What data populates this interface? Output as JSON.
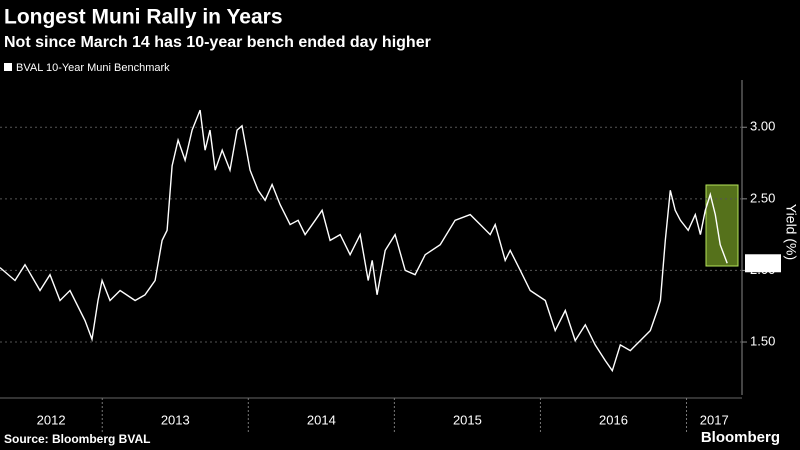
{
  "chart_data": {
    "type": "line",
    "title": "Longest Muni Rally in Years",
    "subtitle": "Not since March 14 has 10-year bench ended day higher",
    "y_axis_label": "Yield (%)",
    "source": "Source: Bloomberg BVAL",
    "logo": "Bloomberg",
    "x": [
      2012.3,
      2012.403,
      2012.471,
      2012.574,
      2012.642,
      2012.711,
      2012.779,
      2012.882,
      2012.93,
      2012.971,
      2012.999,
      2013.053,
      2013.122,
      2013.225,
      2013.293,
      2013.362,
      2013.41,
      2013.444,
      2013.478,
      2013.519,
      2013.567,
      2013.615,
      2013.67,
      2013.704,
      2013.738,
      2013.773,
      2013.821,
      2013.875,
      2013.923,
      2013.957,
      2014.012,
      2014.067,
      2014.115,
      2014.163,
      2014.218,
      2014.286,
      2014.341,
      2014.389,
      2014.458,
      2014.505,
      2014.56,
      2014.629,
      2014.697,
      2014.766,
      2014.821,
      2014.848,
      2014.882,
      2014.937,
      2015.005,
      2015.074,
      2015.142,
      2015.211,
      2015.314,
      2015.416,
      2015.519,
      2015.588,
      2015.656,
      2015.69,
      2015.759,
      2015.793,
      2015.862,
      2015.93,
      2016.033,
      2016.101,
      2016.17,
      2016.238,
      2016.307,
      2016.375,
      2016.444,
      2016.492,
      2016.547,
      2016.615,
      2016.684,
      2016.752,
      2016.8,
      2016.821,
      2016.855,
      2016.889,
      2016.923,
      2016.958,
      2017.012,
      2017.06,
      2017.095,
      2017.129,
      2017.163,
      2017.197,
      2017.231,
      2017.279
    ],
    "series": [
      {
        "name": "BVAL 10-Year Muni Benchmark",
        "color": "#ffffff",
        "values": [
          2.02,
          1.93,
          2.04,
          1.86,
          1.97,
          1.79,
          1.86,
          1.65,
          1.52,
          1.79,
          1.93,
          1.79,
          1.86,
          1.79,
          1.83,
          1.93,
          2.21,
          2.28,
          2.73,
          2.91,
          2.77,
          2.98,
          3.12,
          2.84,
          2.98,
          2.7,
          2.84,
          2.7,
          2.98,
          3.01,
          2.7,
          2.56,
          2.49,
          2.6,
          2.46,
          2.32,
          2.35,
          2.25,
          2.35,
          2.42,
          2.21,
          2.25,
          2.11,
          2.25,
          1.93,
          2.07,
          1.83,
          2.14,
          2.25,
          2.0,
          1.97,
          2.11,
          2.18,
          2.35,
          2.39,
          2.32,
          2.25,
          2.32,
          2.07,
          2.14,
          2.0,
          1.86,
          1.79,
          1.58,
          1.72,
          1.51,
          1.62,
          1.48,
          1.37,
          1.3,
          1.48,
          1.44,
          1.51,
          1.58,
          1.72,
          1.79,
          2.21,
          2.56,
          2.42,
          2.35,
          2.28,
          2.39,
          2.25,
          2.42,
          2.53,
          2.39,
          2.18,
          2.05
        ]
      }
    ],
    "xlim": [
      2012.3,
      2017.38
    ],
    "xticks": [
      2012,
      2013,
      2014,
      2015,
      2016,
      2017
    ],
    "ylim": [
      1.13,
      3.33
    ],
    "yticks": [
      {
        "value": 1.5,
        "label": "1.50"
      },
      {
        "value": 2,
        "label": "2.00"
      },
      {
        "value": 2.5,
        "label": "2.50"
      },
      {
        "value": 3,
        "label": "3.00"
      }
    ],
    "grid": true
  }
}
